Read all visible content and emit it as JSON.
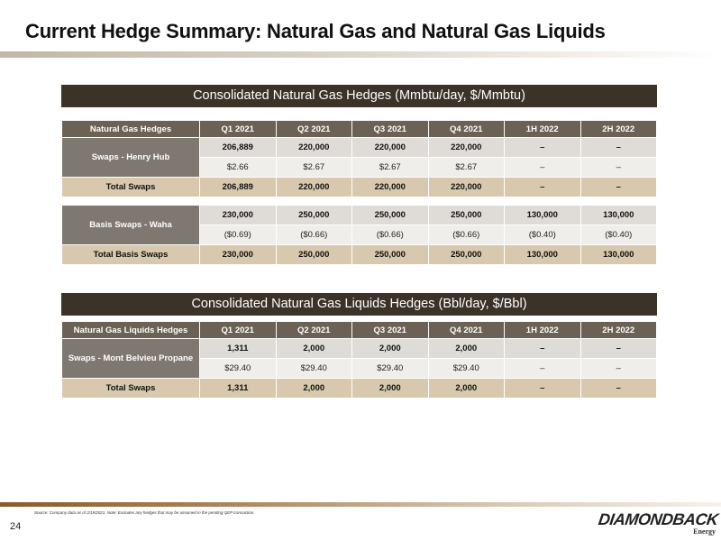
{
  "page": {
    "title": "Current Hedge Summary: Natural Gas and Natural Gas Liquids",
    "number": "24",
    "source_note": "Source: Company data as of 2/19/2021. Note: Excludes any hedges that may be assumed in the pending QEP transaction.",
    "logo_text": "DIAMONDBACK",
    "logo_subtext": "Energy"
  },
  "gas_table": {
    "banner": "Consolidated Natural Gas Hedges (Mmbtu/day, $/Mmbtu)",
    "headers": [
      "Natural Gas Hedges",
      "Q1 2021",
      "Q2 2021",
      "Q3 2021",
      "Q4 2021",
      "1H 2022",
      "2H 2022"
    ],
    "groups": [
      {
        "label": "Swaps - Henry Hub",
        "volumes": [
          "206,889",
          "220,000",
          "220,000",
          "220,000",
          "–",
          "–"
        ],
        "prices": [
          "$2.66",
          "$2.67",
          "$2.67",
          "$2.67",
          "–",
          "–"
        ],
        "total_label": "Total Swaps",
        "totals": [
          "206,889",
          "220,000",
          "220,000",
          "220,000",
          "–",
          "–"
        ]
      },
      {
        "label": "Basis Swaps - Waha",
        "volumes": [
          "230,000",
          "250,000",
          "250,000",
          "250,000",
          "130,000",
          "130,000"
        ],
        "prices": [
          "($0.69)",
          "($0.66)",
          "($0.66)",
          "($0.66)",
          "($0.40)",
          "($0.40)"
        ],
        "total_label": "Total Basis Swaps",
        "totals": [
          "230,000",
          "250,000",
          "250,000",
          "250,000",
          "130,000",
          "130,000"
        ]
      }
    ]
  },
  "ngl_table": {
    "banner": "Consolidated Natural Gas Liquids Hedges (Bbl/day, $/Bbl)",
    "headers": [
      "Natural Gas Liquids Hedges",
      "Q1 2021",
      "Q2 2021",
      "Q3 2021",
      "Q4 2021",
      "1H 2022",
      "2H 2022"
    ],
    "groups": [
      {
        "label": "Swaps - Mont Belvieu Propane",
        "volumes": [
          "1,311",
          "2,000",
          "2,000",
          "2,000",
          "–",
          "–"
        ],
        "prices": [
          "$29.40",
          "$29.40",
          "$29.40",
          "$29.40",
          "–",
          "–"
        ],
        "total_label": "Total Swaps",
        "totals": [
          "1,311",
          "2,000",
          "2,000",
          "2,000",
          "–",
          "–"
        ]
      }
    ]
  },
  "colors": {
    "banner": "#3b3228",
    "header": "#6b6154",
    "row_label": "#7f7870",
    "volume_cell": "#dfdcd8",
    "price_cell": "#f0eeeb",
    "total_row": "#d8c8ae"
  }
}
